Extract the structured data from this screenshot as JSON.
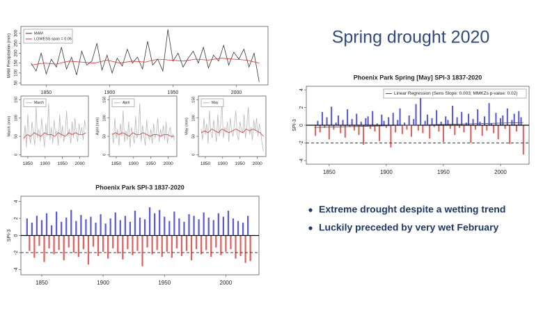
{
  "slide": {
    "title": "Spring drought 2020",
    "bullets": [
      "Extreme drought despite a wetting trend",
      "Luckily preceded by very wet February"
    ]
  },
  "chart_data": [
    {
      "type": "line",
      "y_label": "MAM Precipitation (mm)",
      "xlim": [
        1830,
        2025
      ],
      "ylim": [
        40,
        335
      ],
      "xticks": [
        1850,
        1900,
        1950,
        2000
      ],
      "yticks": [
        50,
        100,
        150,
        200,
        250,
        300
      ],
      "legend": "top-left",
      "series": [
        {
          "name": "MAM",
          "color": "#333333",
          "x": [
            1838,
            1842,
            1846,
            1850,
            1854,
            1858,
            1862,
            1866,
            1870,
            1874,
            1878,
            1882,
            1886,
            1890,
            1894,
            1898,
            1902,
            1906,
            1910,
            1914,
            1918,
            1922,
            1926,
            1930,
            1934,
            1938,
            1942,
            1946,
            1950,
            1954,
            1958,
            1962,
            1966,
            1970,
            1974,
            1978,
            1982,
            1986,
            1990,
            1994,
            1998,
            2002,
            2006,
            2010,
            2014,
            2018
          ],
          "values": [
            150,
            110,
            200,
            95,
            170,
            130,
            230,
            120,
            180,
            90,
            210,
            140,
            160,
            250,
            115,
            190,
            100,
            175,
            135,
            220,
            150,
            180,
            120,
            260,
            140,
            170,
            110,
            320,
            160,
            200,
            130,
            175,
            210,
            150,
            230,
            125,
            190,
            160,
            240,
            140,
            205,
            170,
            220,
            130,
            200,
            55
          ]
        },
        {
          "name": "LOWESS span = 0.05",
          "color": "#e03030",
          "x": [
            1838,
            1848,
            1858,
            1868,
            1878,
            1888,
            1898,
            1908,
            1918,
            1928,
            1938,
            1948,
            1958,
            1968,
            1978,
            1988,
            1998,
            2008,
            2018
          ],
          "values": [
            140,
            150,
            145,
            160,
            155,
            150,
            165,
            150,
            160,
            155,
            170,
            165,
            160,
            170,
            165,
            175,
            170,
            165,
            150
          ]
        }
      ]
    },
    {
      "type": "line",
      "y_label": "March (mm)",
      "xlim": [
        1830,
        2025
      ],
      "ylim": [
        -5,
        160
      ],
      "xticks": [
        1850,
        1900,
        1950,
        2000
      ],
      "yticks": [
        0,
        50,
        100,
        150
      ],
      "legend": "top-left",
      "series": [
        {
          "name": "March",
          "color": "#b8b8b8",
          "x": [
            1838,
            1842,
            1846,
            1850,
            1854,
            1858,
            1862,
            1866,
            1870,
            1874,
            1878,
            1882,
            1886,
            1890,
            1894,
            1898,
            1902,
            1906,
            1910,
            1914,
            1918,
            1922,
            1926,
            1930,
            1934,
            1938,
            1942,
            1946,
            1950,
            1954,
            1958,
            1962,
            1966,
            1970,
            1974,
            1978,
            1982,
            1986,
            1990,
            1994,
            1998,
            2002,
            2006,
            2010,
            2014,
            2018
          ],
          "values": [
            40,
            80,
            20,
            110,
            55,
            30,
            90,
            60,
            25,
            130,
            45,
            70,
            35,
            100,
            60,
            20,
            85,
            50,
            140,
            40,
            75,
            30,
            95,
            55,
            65,
            25,
            110,
            45,
            80,
            35,
            60,
            120,
            50,
            70,
            30,
            90,
            45,
            100,
            60,
            35,
            85,
            55,
            75,
            40,
            95,
            70
          ]
        },
        {
          "color": "#e03030",
          "x": [
            1838,
            1848,
            1858,
            1868,
            1878,
            1888,
            1898,
            1908,
            1918,
            1928,
            1938,
            1948,
            1958,
            1968,
            1978,
            1988,
            1998,
            2008,
            2018
          ],
          "values": [
            45,
            55,
            50,
            60,
            55,
            50,
            60,
            55,
            55,
            50,
            60,
            55,
            50,
            60,
            55,
            60,
            55,
            55,
            60
          ]
        }
      ]
    },
    {
      "type": "line",
      "y_label": "April (mm)",
      "xlim": [
        1830,
        2025
      ],
      "ylim": [
        -5,
        160
      ],
      "xticks": [
        1850,
        1900,
        1950,
        2000
      ],
      "yticks": [
        0,
        50,
        100,
        150
      ],
      "legend": "top-left",
      "series": [
        {
          "name": "April",
          "color": "#b8b8b8",
          "x": [
            1838,
            1842,
            1846,
            1850,
            1854,
            1858,
            1862,
            1866,
            1870,
            1874,
            1878,
            1882,
            1886,
            1890,
            1894,
            1898,
            1902,
            1906,
            1910,
            1914,
            1918,
            1922,
            1926,
            1930,
            1934,
            1938,
            1942,
            1946,
            1950,
            1954,
            1958,
            1962,
            1966,
            1970,
            1974,
            1978,
            1982,
            1986,
            1990,
            1994,
            1998,
            2002,
            2006,
            2010,
            2014,
            2018
          ],
          "values": [
            60,
            30,
            100,
            45,
            70,
            25,
            85,
            50,
            120,
            35,
            65,
            40,
            90,
            20,
            75,
            55,
            30,
            105,
            45,
            60,
            140,
            35,
            80,
            50,
            25,
            95,
            55,
            40,
            70,
            30,
            85,
            45,
            60,
            100,
            35,
            70,
            50,
            80,
            40,
            90,
            30,
            60,
            75,
            45,
            55,
            40
          ]
        },
        {
          "color": "#e03030",
          "x": [
            1838,
            1848,
            1858,
            1868,
            1878,
            1888,
            1898,
            1908,
            1918,
            1928,
            1938,
            1948,
            1958,
            1968,
            1978,
            1988,
            1998,
            2008,
            2018
          ],
          "values": [
            55,
            60,
            55,
            60,
            55,
            50,
            60,
            55,
            55,
            60,
            55,
            50,
            55,
            55,
            50,
            55,
            55,
            50,
            50
          ]
        }
      ]
    },
    {
      "type": "line",
      "y_label": "May (mm)",
      "xlim": [
        1830,
        2025
      ],
      "ylim": [
        -5,
        160
      ],
      "xticks": [
        1850,
        1900,
        1950,
        2000
      ],
      "yticks": [
        0,
        50,
        100,
        150
      ],
      "legend": "top-left",
      "series": [
        {
          "name": "May",
          "color": "#b8b8b8",
          "x": [
            1838,
            1842,
            1846,
            1850,
            1854,
            1858,
            1862,
            1866,
            1870,
            1874,
            1878,
            1882,
            1886,
            1890,
            1894,
            1898,
            1902,
            1906,
            1910,
            1914,
            1918,
            1922,
            1926,
            1930,
            1934,
            1938,
            1942,
            1946,
            1950,
            1954,
            1958,
            1962,
            1966,
            1970,
            1974,
            1978,
            1982,
            1986,
            1990,
            1994,
            1998,
            2002,
            2006,
            2010,
            2014,
            2018
          ],
          "values": [
            70,
            40,
            100,
            55,
            85,
            30,
            120,
            60,
            45,
            95,
            65,
            35,
            110,
            50,
            80,
            140,
            45,
            75,
            60,
            90,
            35,
            100,
            65,
            50,
            85,
            120,
            55,
            40,
            90,
            70,
            60,
            110,
            45,
            80,
            130,
            55,
            75,
            40,
            95,
            65,
            100,
            50,
            85,
            60,
            30,
            10
          ]
        },
        {
          "color": "#e03030",
          "x": [
            1838,
            1848,
            1858,
            1868,
            1878,
            1888,
            1898,
            1908,
            1918,
            1928,
            1938,
            1948,
            1958,
            1968,
            1978,
            1988,
            1998,
            2008,
            2018
          ],
          "values": [
            60,
            65,
            60,
            70,
            65,
            60,
            70,
            65,
            60,
            65,
            70,
            65,
            60,
            70,
            65,
            70,
            65,
            60,
            50
          ]
        }
      ]
    },
    {
      "type": "bar",
      "title": "Phoenix Park Spring [May] SPI-3 1837-2020",
      "y_label": "SPI-3",
      "xlim": [
        1830,
        2025
      ],
      "ylim": [
        -4.4,
        4.4
      ],
      "xticks": [
        1850,
        1900,
        1950,
        2000
      ],
      "yticks": [
        -4,
        -2,
        0,
        2,
        4
      ],
      "pos_color": "#5a5ad8",
      "neg_color": "#e06060",
      "threshold": -2,
      "legend": "top-right",
      "trend": {
        "name": "Linear Regression (Sens Slope: 0.003; MMKZs p-value: 0.02)",
        "color": "#555555",
        "x": [
          1837,
          2020
        ],
        "values": [
          -0.25,
          0.3
        ]
      },
      "x": [
        1838,
        1840,
        1842,
        1844,
        1846,
        1848,
        1850,
        1852,
        1854,
        1856,
        1858,
        1860,
        1862,
        1864,
        1866,
        1868,
        1870,
        1872,
        1874,
        1876,
        1878,
        1880,
        1882,
        1884,
        1886,
        1888,
        1890,
        1892,
        1894,
        1896,
        1898,
        1900,
        1902,
        1904,
        1906,
        1908,
        1910,
        1912,
        1914,
        1916,
        1918,
        1920,
        1922,
        1924,
        1926,
        1928,
        1930,
        1932,
        1934,
        1936,
        1938,
        1940,
        1942,
        1944,
        1946,
        1948,
        1950,
        1952,
        1954,
        1956,
        1958,
        1960,
        1962,
        1964,
        1966,
        1968,
        1970,
        1972,
        1974,
        1976,
        1978,
        1980,
        1982,
        1984,
        1986,
        1988,
        1990,
        1992,
        1994,
        1996,
        1998,
        2000,
        2002,
        2004,
        2006,
        2008,
        2010,
        2012,
        2014,
        2016,
        2018,
        2020
      ],
      "values": [
        -1.2,
        0.5,
        -0.8,
        1.5,
        -0.3,
        0.9,
        -1.6,
        2.1,
        -0.5,
        0.3,
        1.1,
        -0.9,
        0.6,
        -1.4,
        1.8,
        -0.2,
        0.7,
        -0.6,
        1.3,
        -1.1,
        0.4,
        -2.2,
        0.8,
        1.0,
        -0.4,
        1.6,
        -0.7,
        0.2,
        -1.8,
        1.2,
        0.5,
        -0.3,
        0.9,
        -2.5,
        1.4,
        -0.8,
        0.6,
        1.9,
        -1.0,
        0.3,
        -0.5,
        1.1,
        -1.3,
        0.7,
        2.4,
        -0.6,
        3.1,
        -0.9,
        0.5,
        1.2,
        -1.5,
        0.8,
        -0.2,
        1.7,
        -0.7,
        0.4,
        -1.9,
        1.0,
        0.6,
        -0.4,
        2.2,
        -1.1,
        0.9,
        -0.3,
        1.5,
        -0.8,
        0.3,
        1.3,
        -2.0,
        0.7,
        -0.5,
        1.8,
        0.4,
        -1.2,
        1.0,
        -0.6,
        2.5,
        0.2,
        -0.9,
        1.4,
        -1.6,
        0.8,
        1.1,
        -0.4,
        1.9,
        -2.1,
        0.6,
        1.3,
        -0.7,
        1.6,
        0.9,
        -3.3
      ]
    },
    {
      "type": "bar",
      "title": "Phoenix Park SPI-3 1837-2020",
      "y_label": "SPI-3",
      "xlim": [
        1833,
        2027
      ],
      "ylim": [
        -4.6,
        4.6
      ],
      "xticks": [
        1850,
        1900,
        1950,
        2000
      ],
      "yticks": [
        -4,
        -2,
        0,
        2,
        4
      ],
      "pos_color": "#5a5ad8",
      "neg_color": "#e06060",
      "threshold": -2,
      "x": [
        1838,
        1840,
        1842,
        1844,
        1846,
        1848,
        1850,
        1852,
        1854,
        1856,
        1858,
        1860,
        1862,
        1864,
        1866,
        1868,
        1870,
        1872,
        1874,
        1876,
        1878,
        1880,
        1882,
        1884,
        1886,
        1888,
        1890,
        1892,
        1894,
        1896,
        1898,
        1900,
        1902,
        1904,
        1906,
        1908,
        1910,
        1912,
        1914,
        1916,
        1918,
        1920,
        1922,
        1924,
        1926,
        1928,
        1930,
        1932,
        1934,
        1936,
        1938,
        1940,
        1942,
        1944,
        1946,
        1948,
        1950,
        1952,
        1954,
        1956,
        1958,
        1960,
        1962,
        1964,
        1966,
        1968,
        1970,
        1972,
        1974,
        1976,
        1978,
        1980,
        1982,
        1984,
        1986,
        1988,
        1990,
        1992,
        1994,
        1996,
        1998,
        2000,
        2002,
        2004,
        2006,
        2008,
        2010,
        2012,
        2014,
        2016,
        2018,
        2020
      ],
      "values": [
        2.0,
        -1.8,
        1.5,
        -2.6,
        2.3,
        -1.2,
        1.8,
        -3.1,
        2.6,
        -1.5,
        1.2,
        -2.2,
        2.8,
        -1.7,
        1.6,
        -2.9,
        2.1,
        -1.4,
        3.0,
        -2.0,
        1.7,
        -2.5,
        2.4,
        -1.6,
        1.9,
        -3.4,
        2.2,
        -1.3,
        1.5,
        -2.4,
        2.5,
        -1.9,
        1.4,
        -2.7,
        2.0,
        -1.5,
        2.7,
        -2.1,
        1.8,
        -2.8,
        2.3,
        -1.6,
        1.6,
        -2.3,
        2.9,
        -1.8,
        2.1,
        -3.6,
        1.9,
        -1.4,
        3.3,
        -2.2,
        2.6,
        -1.7,
        3.0,
        -2.5,
        2.2,
        -1.9,
        1.7,
        -2.6,
        2.8,
        -1.5,
        2.0,
        -2.4,
        1.6,
        -1.8,
        2.5,
        -2.9,
        2.3,
        -1.6,
        1.9,
        -2.2,
        2.7,
        -1.7,
        2.1,
        -2.5,
        1.8,
        -1.4,
        2.6,
        -2.3,
        2.2,
        -1.9,
        2.9,
        -1.6,
        2.0,
        -2.7,
        1.7,
        -2.4,
        1.5,
        -3.2,
        2.3,
        -3.0
      ]
    }
  ]
}
